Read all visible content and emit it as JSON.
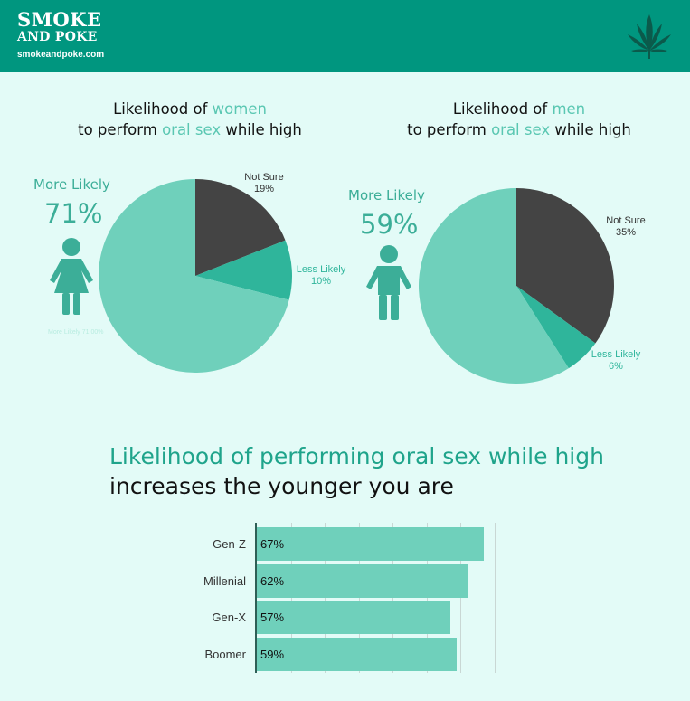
{
  "header": {
    "logo_line1": "SMOKE",
    "logo_line2": "AND POKE",
    "site": "smokeandpoke.com",
    "leaf_icon": "cannabis-leaf-icon",
    "bg_color": "#00967f"
  },
  "women": {
    "title_a": "Likelihood of ",
    "title_hl": "women",
    "title_b": "to perform ",
    "title_hl2": "oral sex",
    "title_c": " while high",
    "more_likely_label": "More Likely",
    "more_likely_pct": "71%",
    "not_sure_label": "Not Sure",
    "not_sure_pct": "19%",
    "less_likely_label": "Less Likely",
    "less_likely_pct": "10%",
    "inner_label": "More Likely 71.00%"
  },
  "men": {
    "title_a": "Likelihood of ",
    "title_hl": "men",
    "title_b": "to perform ",
    "title_hl2": "oral sex",
    "title_c": " while high",
    "more_likely_label": "More Likely",
    "more_likely_pct": "59%",
    "not_sure_label": "Not Sure",
    "not_sure_pct": "35%",
    "less_likely_label": "Less Likely",
    "less_likely_pct": "6%"
  },
  "bar_section": {
    "title_line1": "Likelihood of performing oral sex while high",
    "title_line2": "increases the younger you are"
  },
  "colors": {
    "more_likely": "#6fd0bb",
    "less_likely": "#2fb59b",
    "not_sure": "#444444",
    "accent": "#3cae98"
  },
  "chart_data": [
    {
      "type": "pie",
      "categories": [
        "Not Sure",
        "Less Likely",
        "More Likely"
      ],
      "values": [
        19,
        10,
        71
      ],
      "title": "Likelihood of women to perform oral sex while high"
    },
    {
      "type": "pie",
      "categories": [
        "Not Sure",
        "Less Likely",
        "More Likely"
      ],
      "values": [
        35,
        6,
        59
      ],
      "title": "Likelihood of men to perform oral sex while high"
    },
    {
      "type": "bar",
      "orientation": "horizontal",
      "categories": [
        "Gen-Z",
        "Millenial",
        "Gen-X",
        "Boomer"
      ],
      "values": [
        67,
        62,
        57,
        59
      ],
      "value_labels": [
        "67%",
        "62%",
        "57%",
        "59%"
      ],
      "xlim": [
        0,
        100
      ],
      "title": "Likelihood of performing oral sex while high increases the younger you are"
    }
  ]
}
